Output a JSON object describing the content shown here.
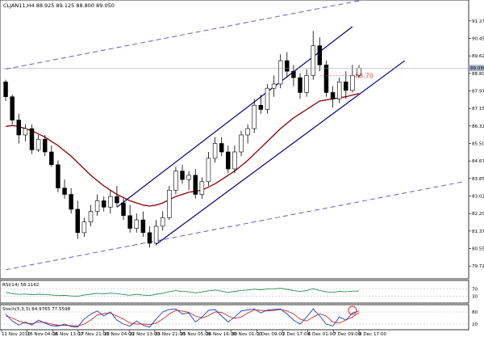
{
  "header": {
    "symbol_line": "CLJAN11,H4  88.925 89.125 88.800 89.050"
  },
  "colors": {
    "bull_candle": "#ffffff",
    "bear_candle": "#000000",
    "ma_line": "#8b0000",
    "channel_line": "#000080",
    "outer_channel": "#6a5acd",
    "price_box": "#a9b3c9",
    "rsi_line": "#2e8b57",
    "stoch_main": "#1f3fbf",
    "stoch_signal": "#d62828",
    "annotation": "#d9534f"
  },
  "chart_data": {
    "type": "candlestick",
    "title": "CLJAN11,H4  88.925 89.125 88.800 89.050",
    "current_price": 89.05,
    "annotation_level": 88.7,
    "annotation_label": "88.70",
    "ylim": [
      79.2,
      91.8
    ],
    "y_ticks": [
      "91.275",
      "90.450",
      "89.625",
      "88.800",
      "87.975",
      "87.150",
      "86.325",
      "85.500",
      "84.675",
      "83.850",
      "83.025",
      "82.200",
      "81.375",
      "80.550",
      "79.725"
    ],
    "y_tick_values": [
      91.275,
      90.45,
      89.625,
      88.8,
      87.975,
      87.15,
      86.325,
      85.5,
      84.675,
      83.85,
      83.025,
      82.2,
      81.375,
      80.55,
      79.725
    ],
    "x_ticks": [
      "11 Nov 2010",
      "15 Nov 04:00",
      "16 Nov 13:00",
      "17 Nov 21:00",
      "19 Nov 04:00",
      "22 Nov 13:00",
      "23 Nov 21:00",
      "25 Nov 05:00",
      "26 Nov 16:00",
      "30 Nov 01:00",
      "1 Dec 09:00",
      "2 Dec 17:00",
      "6 Dec 01:00",
      "7 Dec 09:00",
      "8 Dec 17:00"
    ],
    "candles": [
      [
        88.4,
        88.5,
        87.5,
        87.7
      ],
      [
        87.7,
        87.8,
        86.4,
        86.6
      ],
      [
        86.6,
        86.9,
        85.5,
        85.9
      ],
      [
        85.9,
        86.4,
        85.6,
        86.2
      ],
      [
        86.2,
        86.4,
        85.0,
        85.2
      ],
      [
        85.2,
        85.9,
        85.1,
        85.7
      ],
      [
        85.7,
        85.9,
        84.9,
        85.1
      ],
      [
        85.1,
        85.4,
        84.4,
        84.5
      ],
      [
        84.5,
        84.7,
        83.2,
        83.4
      ],
      [
        83.4,
        83.8,
        82.9,
        83.1
      ],
      [
        83.1,
        83.4,
        82.2,
        82.4
      ],
      [
        82.4,
        82.8,
        81.0,
        81.3
      ],
      [
        81.3,
        82.0,
        81.1,
        81.8
      ],
      [
        81.8,
        82.6,
        81.6,
        82.3
      ],
      [
        82.3,
        83.1,
        82.1,
        82.8
      ],
      [
        82.8,
        83.0,
        82.3,
        82.5
      ],
      [
        82.5,
        83.3,
        82.2,
        83.0
      ],
      [
        83.0,
        83.5,
        82.5,
        82.7
      ],
      [
        82.7,
        82.9,
        81.9,
        82.1
      ],
      [
        82.1,
        82.6,
        81.3,
        81.5
      ],
      [
        81.5,
        82.2,
        81.3,
        81.9
      ],
      [
        81.9,
        82.3,
        81.1,
        81.3
      ],
      [
        81.3,
        81.6,
        80.6,
        80.8
      ],
      [
        80.8,
        81.9,
        80.7,
        81.6
      ],
      [
        81.6,
        82.3,
        81.4,
        82.0
      ],
      [
        82.0,
        83.5,
        81.9,
        83.3
      ],
      [
        83.3,
        84.4,
        83.1,
        84.2
      ],
      [
        84.2,
        84.5,
        83.6,
        83.8
      ],
      [
        83.8,
        84.2,
        83.3,
        84.0
      ],
      [
        84.0,
        84.3,
        82.9,
        83.1
      ],
      [
        83.1,
        83.9,
        82.9,
        83.7
      ],
      [
        83.7,
        85.1,
        83.5,
        84.8
      ],
      [
        84.8,
        85.8,
        84.6,
        85.5
      ],
      [
        85.5,
        85.8,
        84.9,
        85.1
      ],
      [
        85.1,
        85.4,
        84.1,
        84.3
      ],
      [
        84.3,
        85.4,
        84.1,
        85.1
      ],
      [
        85.1,
        86.1,
        84.9,
        85.9
      ],
      [
        85.9,
        86.4,
        85.5,
        86.2
      ],
      [
        86.2,
        87.6,
        86.0,
        87.3
      ],
      [
        87.3,
        87.8,
        86.9,
        87.1
      ],
      [
        87.1,
        88.3,
        86.9,
        88.1
      ],
      [
        88.1,
        88.7,
        87.7,
        88.3
      ],
      [
        88.3,
        89.7,
        88.1,
        89.4
      ],
      [
        89.4,
        89.8,
        88.6,
        88.9
      ],
      [
        88.9,
        89.2,
        88.2,
        88.6
      ],
      [
        88.6,
        88.8,
        87.6,
        87.9
      ],
      [
        87.9,
        89.0,
        87.7,
        88.7
      ],
      [
        88.7,
        90.8,
        88.5,
        90.1
      ],
      [
        90.1,
        90.5,
        88.9,
        89.2
      ],
      [
        89.2,
        89.4,
        87.7,
        87.9
      ],
      [
        87.9,
        88.2,
        87.2,
        87.6
      ],
      [
        87.6,
        88.6,
        87.4,
        88.4
      ],
      [
        88.4,
        88.9,
        87.6,
        88.0
      ],
      [
        88.0,
        89.2,
        87.9,
        88.7
      ],
      [
        88.7,
        89.2,
        88.6,
        89.05
      ]
    ],
    "ma_line": [
      86.3,
      86.35,
      86.3,
      86.2,
      86.1,
      85.95,
      85.8,
      85.6,
      85.4,
      85.15,
      84.9,
      84.6,
      84.3,
      84.0,
      83.75,
      83.5,
      83.3,
      83.1,
      82.95,
      82.8,
      82.7,
      82.6,
      82.55,
      82.6,
      82.7,
      82.85,
      83.0,
      83.1,
      83.2,
      83.25,
      83.3,
      83.45,
      83.6,
      83.8,
      84.0,
      84.2,
      84.45,
      84.7,
      85.0,
      85.3,
      85.6,
      85.9,
      86.2,
      86.45,
      86.7,
      86.9,
      87.1,
      87.3,
      87.5,
      87.55,
      87.6,
      87.65,
      87.7,
      87.78,
      87.85
    ],
    "channels": {
      "upper": [
        [
          17,
          82.5
        ],
        [
          53,
          91.0
        ]
      ],
      "lower": [
        [
          23,
          80.75
        ],
        [
          61,
          89.4
        ]
      ],
      "outer_upper": [
        [
          0,
          89.0
        ],
        [
          57,
          92.4
        ]
      ],
      "outer_lower": [
        [
          0,
          79.55
        ],
        [
          70,
          83.7
        ]
      ]
    },
    "sub_panels": [
      {
        "name": "RSI(14) 58.1162",
        "type": "line",
        "levels": [
          "70",
          "30"
        ],
        "values": [
          52,
          44,
          40,
          42,
          38,
          41,
          39,
          37,
          33,
          34,
          31,
          29,
          36,
          41,
          45,
          43,
          47,
          44,
          39,
          35,
          40,
          36,
          33,
          41,
          46,
          55,
          61,
          56,
          54,
          48,
          53,
          60,
          64,
          58,
          51,
          57,
          62,
          64,
          69,
          66,
          70,
          71,
          74,
          68,
          62,
          56,
          61,
          72,
          62,
          54,
          51,
          57,
          54,
          58,
          58
        ]
      },
      {
        "name": "Stoch(5,3,3) 84.9765 77.5598",
        "type": "line",
        "levels": [
          "80",
          "20"
        ],
        "main": [
          70,
          35,
          15,
          30,
          15,
          40,
          25,
          12,
          10,
          20,
          8,
          5,
          45,
          70,
          85,
          60,
          80,
          40,
          20,
          10,
          35,
          15,
          5,
          45,
          80,
          92,
          95,
          70,
          75,
          30,
          55,
          88,
          92,
          60,
          30,
          55,
          85,
          90,
          95,
          75,
          90,
          92,
          95,
          70,
          40,
          20,
          55,
          95,
          60,
          20,
          10,
          55,
          40,
          75,
          85
        ],
        "signal": [
          60,
          50,
          35,
          25,
          22,
          30,
          28,
          20,
          14,
          14,
          12,
          10,
          20,
          40,
          65,
          72,
          75,
          60,
          45,
          25,
          20,
          20,
          18,
          25,
          45,
          70,
          88,
          85,
          78,
          60,
          50,
          62,
          80,
          78,
          60,
          48,
          55,
          75,
          90,
          88,
          85,
          88,
          92,
          85,
          70,
          45,
          35,
          55,
          70,
          60,
          30,
          25,
          40,
          55,
          77
        ]
      }
    ]
  }
}
